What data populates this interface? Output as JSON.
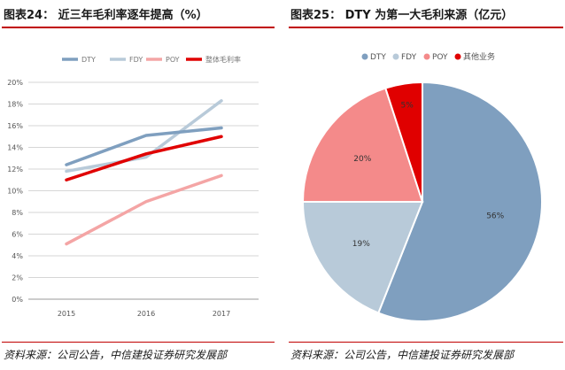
{
  "left_panel": {
    "title": "图表24： 近三年毛利率逐年提高（%）",
    "source": "资料来源：公司公告，中信建投证券研究发展部"
  },
  "right_panel": {
    "title": "图表25： DTY 为第一大毛利来源（亿元）",
    "source": "资料来源：公司公告，中信建投证券研究发展部"
  },
  "chart_data": [
    {
      "type": "line",
      "title": "近三年毛利率逐年提高（%）",
      "xlabel": "",
      "ylabel": "",
      "x": [
        "2015",
        "2016",
        "2017"
      ],
      "ylim": [
        0,
        20
      ],
      "yticks": [
        "0%",
        "2%",
        "4%",
        "6%",
        "8%",
        "10%",
        "12%",
        "14%",
        "16%",
        "18%",
        "20%"
      ],
      "grid": true,
      "legend_position": "top",
      "series": [
        {
          "name": "DTY",
          "values": [
            12.4,
            15.1,
            15.8
          ],
          "color": "#7f9fbf"
        },
        {
          "name": "FDY",
          "values": [
            11.8,
            13.1,
            18.3
          ],
          "color": "#b8cad9"
        },
        {
          "name": "POY",
          "values": [
            5.1,
            9.0,
            11.4
          ],
          "color": "#f4a5a5"
        },
        {
          "name": "整体毛利率",
          "values": [
            11.0,
            13.4,
            15.0
          ],
          "color": "#e00000"
        }
      ]
    },
    {
      "type": "pie",
      "title": "DTY 为第一大毛利来源（亿元）",
      "legend_position": "top",
      "slices": [
        {
          "name": "DTY",
          "value": 56,
          "label": "56%",
          "color": "#7f9fbf"
        },
        {
          "name": "FDY",
          "value": 19,
          "label": "19%",
          "color": "#b8cad9"
        },
        {
          "name": "POY",
          "value": 20,
          "label": "20%",
          "color": "#f48a8a"
        },
        {
          "name": "其他业务",
          "value": 5,
          "label": "5%",
          "color": "#e00000"
        }
      ]
    }
  ]
}
